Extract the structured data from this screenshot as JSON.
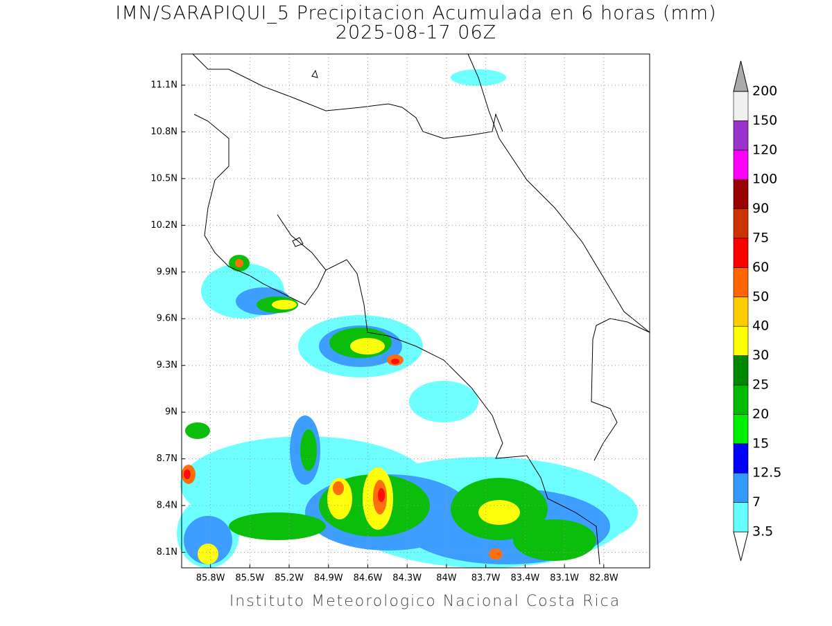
{
  "title": "IMN/SARAPIQUI_5 Precipitacion Acumulada en 6 horas (mm)",
  "subtitle": "2025-08-17 06Z",
  "footer": "Instituto Meteorologico Nacional Costa Rica",
  "map": {
    "xlim": [
      -86.02,
      -82.45
    ],
    "ylim": [
      8.0,
      11.3
    ],
    "grid": true,
    "xticks": [
      {
        "value": -85.8,
        "label": "85.8W"
      },
      {
        "value": -85.5,
        "label": "85.5W"
      },
      {
        "value": -85.2,
        "label": "85.2W"
      },
      {
        "value": -84.9,
        "label": "84.9W"
      },
      {
        "value": -84.6,
        "label": "84.6W"
      },
      {
        "value": -84.3,
        "label": "84.3W"
      },
      {
        "value": -84.0,
        "label": "84W"
      },
      {
        "value": -83.7,
        "label": "83.7W"
      },
      {
        "value": -83.4,
        "label": "83.4W"
      },
      {
        "value": -83.1,
        "label": "83.1W"
      },
      {
        "value": -82.8,
        "label": "82.8W"
      }
    ],
    "yticks": [
      {
        "value": 8.1,
        "label": "8.1N"
      },
      {
        "value": 8.4,
        "label": "8.4N"
      },
      {
        "value": 8.7,
        "label": "8.7N"
      },
      {
        "value": 9.0,
        "label": "9N"
      },
      {
        "value": 9.3,
        "label": "9.3N"
      },
      {
        "value": 9.6,
        "label": "9.6N"
      },
      {
        "value": 9.9,
        "label": "9.9N"
      },
      {
        "value": 10.2,
        "label": "10.2N"
      },
      {
        "value": 10.5,
        "label": "10.5N"
      },
      {
        "value": 10.8,
        "label": "10.8N"
      },
      {
        "value": 11.1,
        "label": "11.1N"
      }
    ]
  },
  "colorbar": {
    "levels": [
      3.5,
      7,
      12.5,
      15,
      20,
      25,
      30,
      40,
      50,
      60,
      75,
      90,
      100,
      120,
      150,
      200
    ],
    "colors": [
      "#ffffff",
      "#66ffff",
      "#3399ff",
      "#0000ff",
      "#00ee00",
      "#00bb00",
      "#008800",
      "#ffff00",
      "#ffcc00",
      "#ff6600",
      "#ff0000",
      "#cc3300",
      "#990000",
      "#ff00ff",
      "#9933cc",
      "#f0f0f0",
      "#aaaaaa"
    ]
  }
}
